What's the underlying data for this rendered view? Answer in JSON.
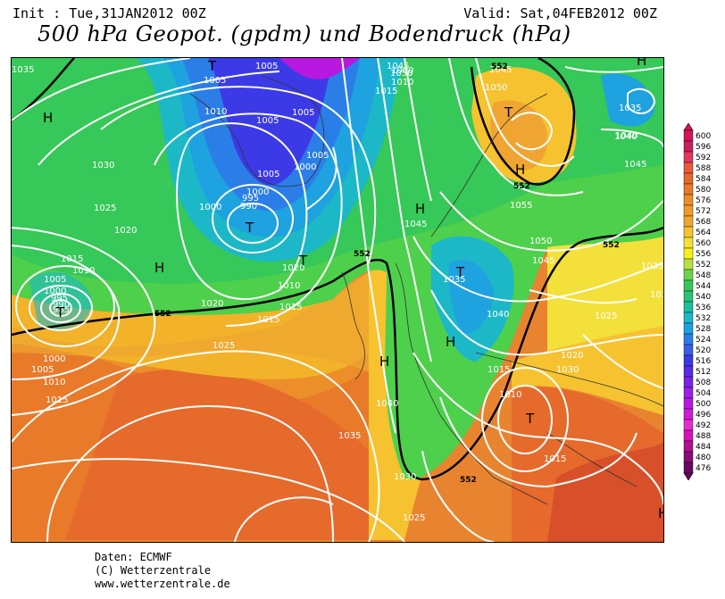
{
  "header": {
    "init": "Init : Tue,31JAN2012 00Z",
    "valid": "Valid: Sat,04FEB2012 00Z",
    "title": "500 hPa Geopot. (gpdm) und Bodendruck (hPa)"
  },
  "legend": {
    "values": [
      "600",
      "596",
      "592",
      "588",
      "584",
      "580",
      "576",
      "572",
      "568",
      "564",
      "560",
      "556",
      "552",
      "548",
      "544",
      "540",
      "536",
      "532",
      "528",
      "524",
      "520",
      "516",
      "512",
      "508",
      "504",
      "500",
      "496",
      "492",
      "488",
      "484",
      "480",
      "476"
    ],
    "colors": [
      "#d4145a",
      "#c81f5e",
      "#e3365c",
      "#e85a3c",
      "#e66a2c",
      "#e87a2a",
      "#ec8e2a",
      "#ef9a2a",
      "#f0a532",
      "#f6c230",
      "#f3e03a",
      "#f7f01c",
      "#b8e044",
      "#6bd44a",
      "#36c858",
      "#28c47a",
      "#1bc09a",
      "#1cb8c8",
      "#1ea2e0",
      "#2b7ee8",
      "#3b5ee8",
      "#3c3ae6",
      "#5a2ce6",
      "#7a22e6",
      "#9c1fe6",
      "#b818e0",
      "#d01cd8",
      "#e62cd0",
      "#d614b8",
      "#b01090",
      "#8a0a78",
      "#6a0860"
    ]
  },
  "map": {
    "isobar_labels": [
      {
        "t": "1035"
      },
      {
        "t": "1005"
      },
      {
        "t": "1005"
      },
      {
        "t": "1010"
      },
      {
        "t": "1005"
      },
      {
        "t": "1005"
      },
      {
        "t": "1000"
      },
      {
        "t": "1005"
      },
      {
        "t": "1030"
      },
      {
        "t": "1025"
      },
      {
        "t": "1020"
      },
      {
        "t": "1000"
      },
      {
        "t": "995"
      },
      {
        "t": "990"
      },
      {
        "t": "1000"
      },
      {
        "t": "1005"
      },
      {
        "t": "1010"
      },
      {
        "t": "1015"
      },
      {
        "t": "1015"
      },
      {
        "t": "1010"
      },
      {
        "t": "1005"
      },
      {
        "t": "1000"
      },
      {
        "t": "995"
      },
      {
        "t": "990"
      },
      {
        "t": "985"
      },
      {
        "t": "1020"
      },
      {
        "t": "1015"
      },
      {
        "t": "1025"
      },
      {
        "t": "1000"
      },
      {
        "t": "1005"
      },
      {
        "t": "1010"
      },
      {
        "t": "1015"
      },
      {
        "t": "1020"
      },
      {
        "t": "1025"
      },
      {
        "t": "1040"
      },
      {
        "t": "1035"
      },
      {
        "t": "1030"
      },
      {
        "t": "1025"
      },
      {
        "t": "1045"
      },
      {
        "t": "1050"
      },
      {
        "t": "1000"
      },
      {
        "t": "1010"
      },
      {
        "t": "1015"
      },
      {
        "t": "1045"
      },
      {
        "t": "1050"
      },
      {
        "t": "1045"
      },
      {
        "t": "1035"
      },
      {
        "t": "1040"
      },
      {
        "t": "1045"
      },
      {
        "t": "1040"
      },
      {
        "t": "1035"
      },
      {
        "t": "1055"
      },
      {
        "t": "1050"
      },
      {
        "t": "1045"
      },
      {
        "t": "1040"
      },
      {
        "t": "1035"
      },
      {
        "t": "1025"
      },
      {
        "t": "1020"
      },
      {
        "t": "1015"
      },
      {
        "t": "1010"
      },
      {
        "t": "1015"
      },
      {
        "t": "1025"
      },
      {
        "t": "1035"
      },
      {
        "t": "1030"
      }
    ],
    "contour_labels": [
      "552",
      "552",
      "552",
      "552",
      "552",
      "552"
    ],
    "pressure_centers": [
      "H",
      "H",
      "H",
      "H",
      "H",
      "H",
      "H",
      "H",
      "T",
      "T",
      "T",
      "T",
      "T",
      "T",
      "T"
    ]
  },
  "credits": {
    "line1": "Daten: ECMWF",
    "line2": "(C) Wetterzentrale",
    "line3": "www.wetterzentrale.de"
  }
}
